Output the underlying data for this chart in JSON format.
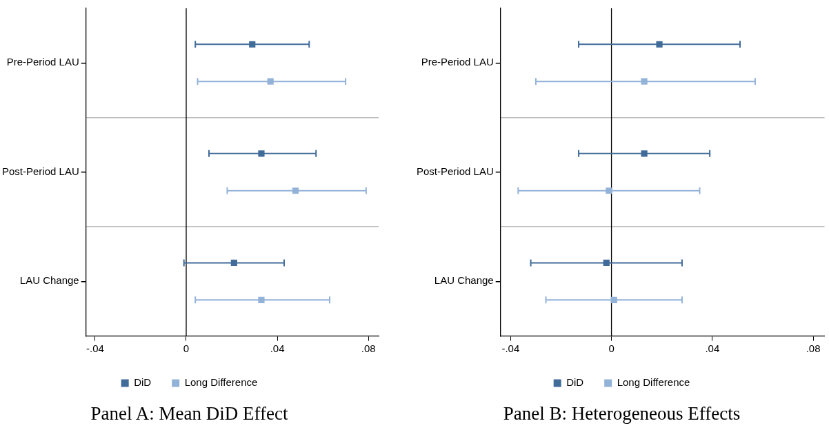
{
  "chart_data": [
    {
      "type": "scatter",
      "title": "Panel A: Mean DiD Effect",
      "orientation": "horizontal",
      "marker": "square",
      "grid": "y",
      "legend": "bottom",
      "categories": [
        "Pre-Period LAU",
        "Post-Period LAU",
        "LAU Change"
      ],
      "xlim": [
        -0.044,
        0.0845
      ],
      "xticks": [
        {
          "value": -0.04,
          "label": "-.04"
        },
        0,
        {
          "value": 0.04,
          "label": ".04"
        },
        {
          "value": 0.08,
          "label": ".08"
        }
      ],
      "ref_lines": [
        {
          "axis": "x",
          "value": 0,
          "color": "#000000"
        }
      ],
      "series": [
        {
          "name": "DiD",
          "color": "#416b99",
          "values": [
            0.029,
            0.033,
            0.021
          ],
          "errors": [
            [
              0.004,
              0.054
            ],
            [
              0.01,
              0.057
            ],
            [
              -0.001,
              0.043
            ]
          ]
        },
        {
          "name": "Long Difference",
          "color": "#93b2d8",
          "values": [
            0.037,
            0.048,
            0.033
          ],
          "errors": [
            [
              0.005,
              0.07
            ],
            [
              0.018,
              0.079
            ],
            [
              0.004,
              0.063
            ]
          ]
        }
      ]
    },
    {
      "type": "scatter",
      "title": "Panel B: Heterogeneous Effects",
      "orientation": "horizontal",
      "marker": "square",
      "grid": "y",
      "legend": "bottom",
      "categories": [
        "Pre-Period LAU",
        "Post-Period LAU",
        "LAU Change"
      ],
      "xlim": [
        -0.044,
        0.0845
      ],
      "xticks": [
        {
          "value": -0.04,
          "label": "-.04"
        },
        0,
        {
          "value": 0.04,
          "label": ".04"
        },
        {
          "value": 0.08,
          "label": ".08"
        }
      ],
      "ref_lines": [
        {
          "axis": "x",
          "value": 0,
          "color": "#000000"
        }
      ],
      "series": [
        {
          "name": "DiD",
          "color": "#416b99",
          "values": [
            0.019,
            0.013,
            -0.002
          ],
          "errors": [
            [
              -0.013,
              0.051
            ],
            [
              -0.013,
              0.039
            ],
            [
              -0.032,
              0.028
            ]
          ]
        },
        {
          "name": "Long Difference",
          "color": "#93b2d8",
          "values": [
            0.013,
            -0.001,
            0.001
          ],
          "errors": [
            [
              -0.03,
              0.057
            ],
            [
              -0.037,
              0.035
            ],
            [
              -0.026,
              0.028
            ]
          ]
        }
      ]
    }
  ]
}
